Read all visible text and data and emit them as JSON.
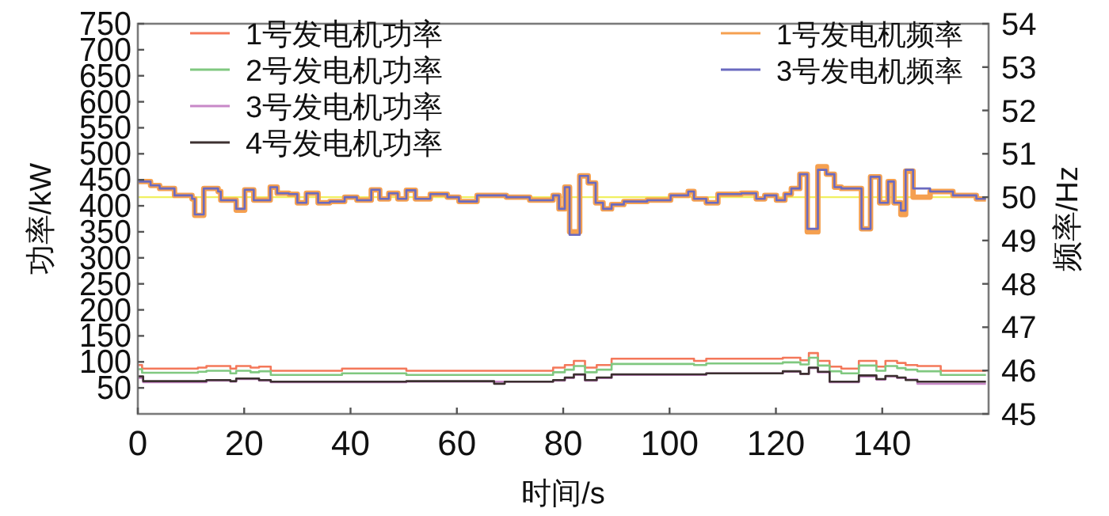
{
  "chart_data": {
    "type": "step",
    "xlabel": "时间/s",
    "ylabel": "功率/kW",
    "y2label": "频率/Hz",
    "xlim": [
      0,
      160
    ],
    "xticks": [
      0,
      20,
      40,
      60,
      80,
      100,
      120,
      140
    ],
    "ylim": [
      0,
      750
    ],
    "yticks": [
      50,
      100,
      150,
      200,
      250,
      300,
      350,
      400,
      450,
      500,
      550,
      600,
      650,
      700,
      750
    ],
    "y2lim": [
      45,
      54
    ],
    "y2ticks": [
      45,
      46,
      47,
      48,
      49,
      50,
      51,
      52,
      53,
      54
    ],
    "legend": "top",
    "grid": false,
    "ref_lines": [
      {
        "axis": "y2",
        "value": 50,
        "color": "#f0f060"
      }
    ],
    "series": [
      {
        "name": "1号发电机功率",
        "color": "#f4785a",
        "x": [
          0,
          0.8,
          11.3,
          12.9,
          17.4,
          18.5,
          21.2,
          22.8,
          25,
          38.4,
          50.5,
          78.1,
          80.3,
          82,
          84.1,
          86.3,
          89.1,
          104.6,
          106.9,
          121.3,
          124.6,
          126.2,
          127.9,
          130.1,
          132.3,
          135.6,
          138.9,
          140.6,
          142.8,
          144.4,
          146.6,
          151,
          159.5
        ],
        "values": [
          94,
          87,
          89,
          92,
          87,
          92,
          89,
          91,
          83,
          87,
          83,
          89,
          94,
          102,
          89,
          94,
          106,
          102,
          106,
          108,
          103,
          117,
          102,
          91,
          87,
          102,
          91,
          102,
          98,
          94,
          92,
          83,
          83
        ]
      },
      {
        "name": "2号发电机功率",
        "color": "#80c880",
        "x": [
          0,
          0.8,
          11.3,
          12.9,
          17.4,
          18.5,
          21.2,
          22.8,
          25,
          38.4,
          50.5,
          78.1,
          80.3,
          82,
          84.1,
          86.3,
          89.1,
          104.6,
          106.9,
          121.3,
          124.6,
          126.2,
          127.9,
          130.1,
          132.3,
          135.6,
          138.9,
          140.6,
          142.8,
          144.4,
          146.6,
          151,
          159.5
        ],
        "values": [
          86,
          79,
          81,
          83,
          78,
          83,
          80,
          82,
          75,
          78,
          75,
          80,
          85,
          92,
          80,
          85,
          96,
          94,
          97,
          99,
          95,
          108,
          93,
          82,
          78,
          93,
          83,
          92,
          88,
          85,
          82,
          75,
          75
        ]
      },
      {
        "name": "3号发电机功率",
        "color": "#c888c8",
        "x": [
          0,
          1,
          12.9,
          17.4,
          18.5,
          22.8,
          25,
          50.5,
          78.1,
          80.3,
          82,
          84.1,
          86.3,
          89.1,
          106.9,
          121.3,
          124.6,
          126.2,
          127.9,
          130.1,
          135.6,
          138.9,
          140.6,
          142.8,
          144.4,
          146.6,
          159.5
        ],
        "values": [
          69,
          61,
          64,
          62,
          67,
          64,
          61,
          62,
          64,
          69,
          75,
          64,
          69,
          75,
          78,
          81,
          77,
          88,
          80,
          61,
          72,
          66,
          72,
          69,
          66,
          58,
          58
        ]
      },
      {
        "name": "4号发电机功率",
        "color": "#3c3030",
        "x": [
          0,
          1,
          12.9,
          17.4,
          18.5,
          22.8,
          25,
          50.5,
          67,
          69,
          78.1,
          80.3,
          82,
          84.1,
          86.3,
          89.1,
          106.9,
          121.3,
          124.6,
          126.2,
          127.9,
          130.1,
          135.6,
          138.9,
          140.6,
          142.8,
          144.4,
          146.6,
          159.5
        ],
        "values": [
          72,
          63,
          65,
          63,
          68,
          65,
          62,
          63,
          58,
          62,
          65,
          70,
          76,
          65,
          70,
          76,
          78,
          82,
          77,
          89,
          81,
          62,
          74,
          67,
          73,
          70,
          65,
          62,
          62
        ]
      },
      {
        "name": "1号发电机频率",
        "color": "#f5a050",
        "axis": "y2",
        "x": [
          0,
          2.4,
          4.1,
          6.9,
          10.2,
          10.7,
          12.4,
          15.1,
          15.6,
          18.5,
          20.1,
          21.8,
          24.9,
          26.2,
          28.4,
          30,
          31.7,
          33.9,
          36.1,
          38.9,
          41.2,
          43.9,
          45.5,
          47.2,
          48.9,
          50.5,
          52.2,
          55,
          58.2,
          60.4,
          63.8,
          69.3,
          73.7,
          78.1,
          79.2,
          80.3,
          81.2,
          83.1,
          84.7,
          86.1,
          87.5,
          89.1,
          91.4,
          95.8,
          100.2,
          103.5,
          104.6,
          106.9,
          109.1,
          113.5,
          116.3,
          117.9,
          120.1,
          121.7,
          122.9,
          124.5,
          125.9,
          127.9,
          129.5,
          131,
          132.3,
          136.1,
          137.8,
          139.5,
          141.1,
          142.2,
          143.5,
          144.4,
          145.8,
          149,
          153.3,
          157.7,
          159.5
        ],
        "values": [
          50.36,
          50.27,
          50.2,
          50.04,
          49.96,
          49.58,
          50.2,
          50.13,
          49.93,
          49.7,
          50.17,
          49.93,
          50.23,
          50.09,
          50.07,
          49.87,
          50.09,
          49.87,
          49.9,
          50.0,
          49.93,
          50.17,
          49.96,
          50.09,
          49.96,
          50.16,
          49.96,
          50.07,
          50.0,
          49.9,
          50.04,
          50.0,
          49.93,
          50.04,
          49.73,
          50.23,
          49.2,
          50.49,
          50.33,
          49.87,
          49.73,
          49.83,
          49.9,
          49.93,
          50.04,
          50.13,
          49.96,
          49.87,
          50.07,
          50.09,
          49.96,
          50.04,
          49.93,
          50.07,
          50.2,
          50.53,
          49.2,
          50.7,
          50.53,
          50.23,
          50.2,
          49.27,
          50.47,
          49.87,
          50.36,
          49.87,
          49.6,
          50.6,
          50.0,
          50.13,
          50.04,
          49.96,
          49.96
        ]
      },
      {
        "name": "3号发电机频率",
        "color": "#6a6ac0",
        "axis": "y2",
        "x": [
          0,
          2.4,
          4.1,
          6.9,
          10.2,
          10.7,
          12.4,
          15.1,
          15.6,
          18.5,
          20.1,
          21.8,
          24.9,
          26.2,
          28.4,
          30,
          31.7,
          33.9,
          36.1,
          38.9,
          41.2,
          43.9,
          45.5,
          47.2,
          48.9,
          50.5,
          52.2,
          55,
          58.2,
          60.4,
          63.8,
          69.3,
          73.7,
          78.1,
          79.2,
          80.3,
          81.2,
          83.1,
          84.7,
          86.1,
          87.5,
          89.1,
          91.4,
          95.8,
          100.2,
          103.5,
          104.6,
          106.9,
          109.1,
          113.5,
          116.3,
          117.9,
          120.1,
          121.7,
          122.9,
          124.5,
          125.9,
          127.9,
          129.5,
          131,
          132.3,
          136.1,
          137.8,
          139.5,
          141.1,
          142.2,
          143.5,
          144.4,
          145.8,
          149,
          153.3,
          157.7,
          159.5
        ],
        "values": [
          50.36,
          50.27,
          50.2,
          50.04,
          49.96,
          49.6,
          50.2,
          50.13,
          49.93,
          49.73,
          50.17,
          49.93,
          50.23,
          50.09,
          50.07,
          49.87,
          50.09,
          49.87,
          49.9,
          50.0,
          49.93,
          50.17,
          49.96,
          50.09,
          49.96,
          50.16,
          49.96,
          50.07,
          50.0,
          49.9,
          50.04,
          50.0,
          49.93,
          50.04,
          49.73,
          50.23,
          49.13,
          50.49,
          50.33,
          49.87,
          49.73,
          49.83,
          49.9,
          49.93,
          50.04,
          50.13,
          49.96,
          49.87,
          50.07,
          50.09,
          49.96,
          50.04,
          49.93,
          50.07,
          50.2,
          50.53,
          49.27,
          50.63,
          50.53,
          50.23,
          50.2,
          49.27,
          50.47,
          49.87,
          50.36,
          49.87,
          49.69,
          50.63,
          50.2,
          50.13,
          50.04,
          49.96,
          49.96
        ]
      }
    ]
  }
}
